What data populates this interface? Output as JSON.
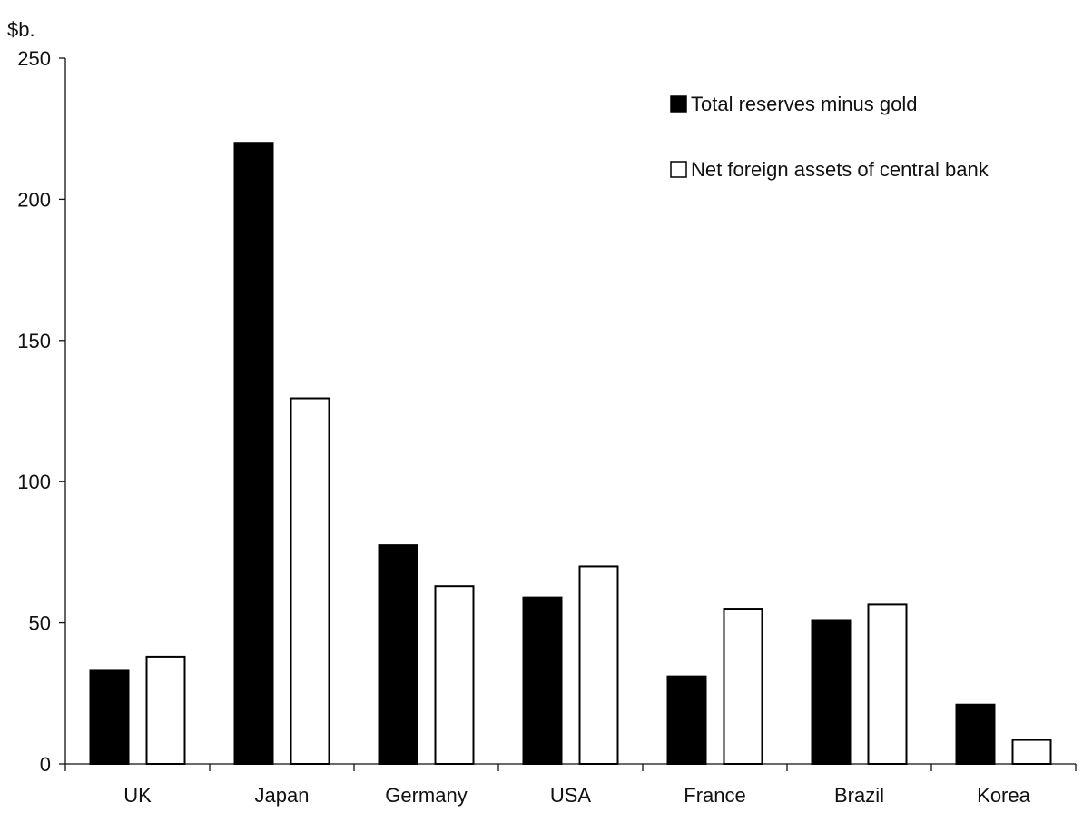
{
  "chart_data": {
    "type": "bar",
    "categories": [
      "UK",
      "Japan",
      "Germany",
      "USA",
      "France",
      "Brazil",
      "Korea"
    ],
    "series": [
      {
        "name": "Total reserves minus gold",
        "values": [
          33,
          220,
          77.5,
          59,
          31,
          51,
          21
        ],
        "color": "#000000"
      },
      {
        "name": "Net foreign assets of central bank",
        "values": [
          38,
          129.5,
          63,
          70,
          55,
          56.5,
          8.5
        ],
        "color": "#ffffff"
      }
    ],
    "ylabel": "$b.",
    "ylim": [
      0,
      250
    ],
    "yticks": [
      0,
      50,
      100,
      150,
      200,
      250
    ],
    "grid": false,
    "legend_position": "top-right"
  }
}
